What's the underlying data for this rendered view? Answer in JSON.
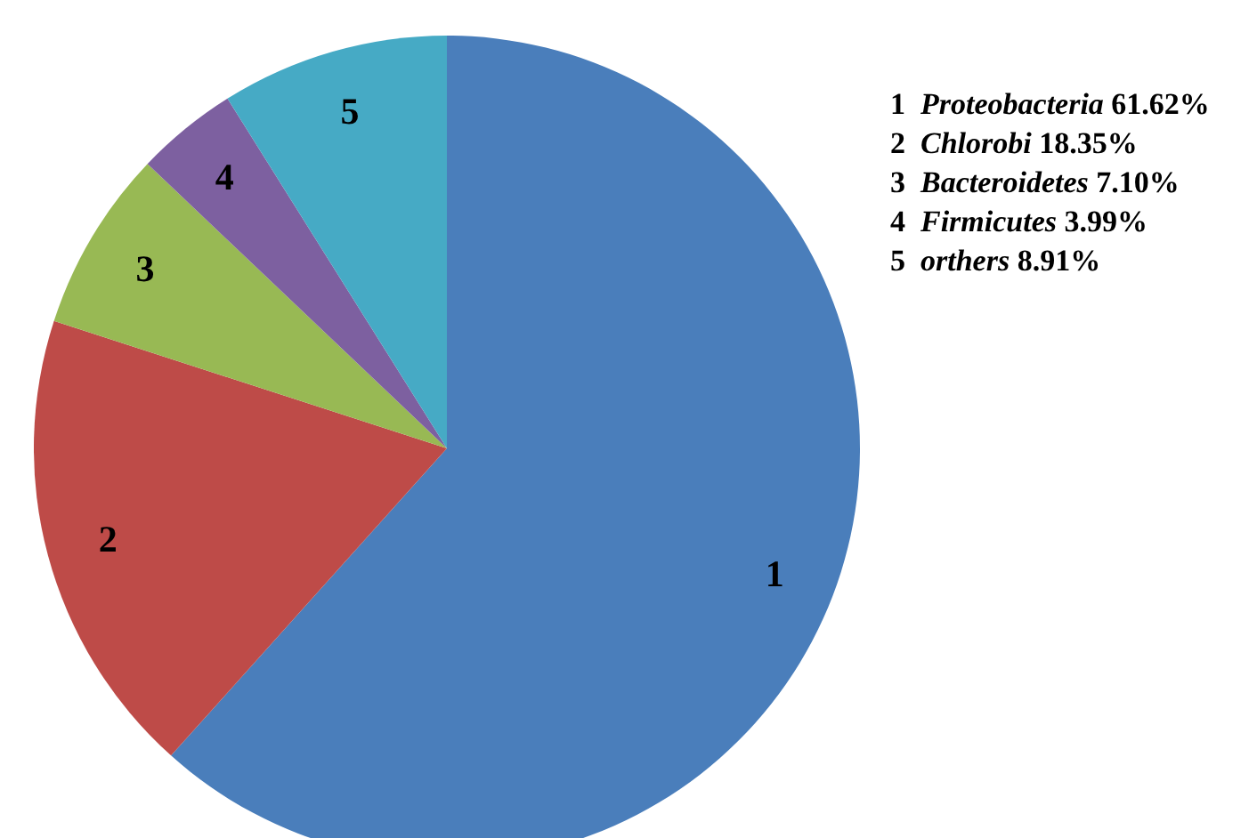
{
  "chart_data": {
    "type": "pie",
    "categories": [
      "1",
      "2",
      "3",
      "4",
      "5"
    ],
    "values": [
      61.62,
      18.35,
      7.1,
      3.99,
      8.91
    ],
    "annotations": [
      "Proteobacteria",
      "61.62%",
      "Chlorobi",
      "18.35%",
      "Bacteroidetes",
      "7.10%",
      "Firmicutes",
      "3.99%",
      "orthers",
      "8.91%"
    ],
    "colors": [
      "#4a7ebb",
      "#be4b48",
      "#98b954",
      "#7d60a0",
      "#46aac5"
    ]
  }
}
